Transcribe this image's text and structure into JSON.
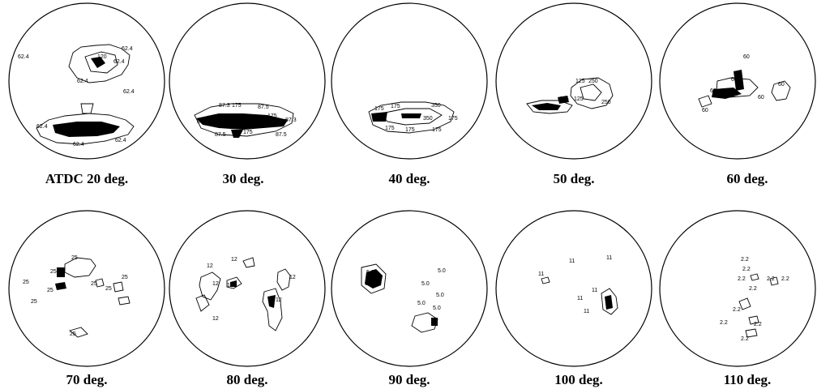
{
  "panels": [
    {
      "label": "ATDC 20 deg.",
      "contour_values": [
        "62.4",
        "62.4",
        "62.4",
        "62.4",
        "62.4",
        "120",
        "120",
        "125",
        "62.4",
        "62.4",
        "62.4"
      ]
    },
    {
      "label": "30 deg.",
      "contour_values": [
        "87.3",
        "175",
        "87.5",
        "175",
        "87.3",
        "87.5",
        "175",
        "87.5",
        "87.5",
        "87.3"
      ]
    },
    {
      "label": "40 deg.",
      "contour_values": [
        "175",
        "175",
        "350",
        "175",
        "350",
        "175",
        "175",
        "175"
      ]
    },
    {
      "label": "50 deg.",
      "contour_values": [
        "125",
        "250",
        "125",
        "125",
        "250"
      ]
    },
    {
      "label": "60 deg.",
      "contour_values": [
        "60",
        "60",
        "60",
        "60",
        "60",
        "60"
      ]
    },
    {
      "label": "70 deg.",
      "contour_values": [
        "25",
        "25",
        "25",
        "25",
        "25",
        "25",
        "25",
        "25",
        "25"
      ]
    },
    {
      "label": "80 deg.",
      "contour_values": [
        "12",
        "12",
        "12",
        "12",
        "12",
        "12",
        "12"
      ]
    },
    {
      "label": "90 deg.",
      "contour_values": [
        "5.0",
        "5.0",
        "5.0",
        "5.0",
        "5.0",
        "5.0",
        "5.0"
      ]
    },
    {
      "label": "100 deg.",
      "contour_values": [
        "11",
        "11",
        "11",
        "11",
        "11",
        "11"
      ]
    },
    {
      "label": "110 deg.",
      "contour_values": [
        "2.2",
        "2.2",
        "2.2",
        "2.2",
        "2.2",
        "2.2",
        "2.2",
        "2.2",
        "2.2",
        "2.2"
      ]
    }
  ]
}
